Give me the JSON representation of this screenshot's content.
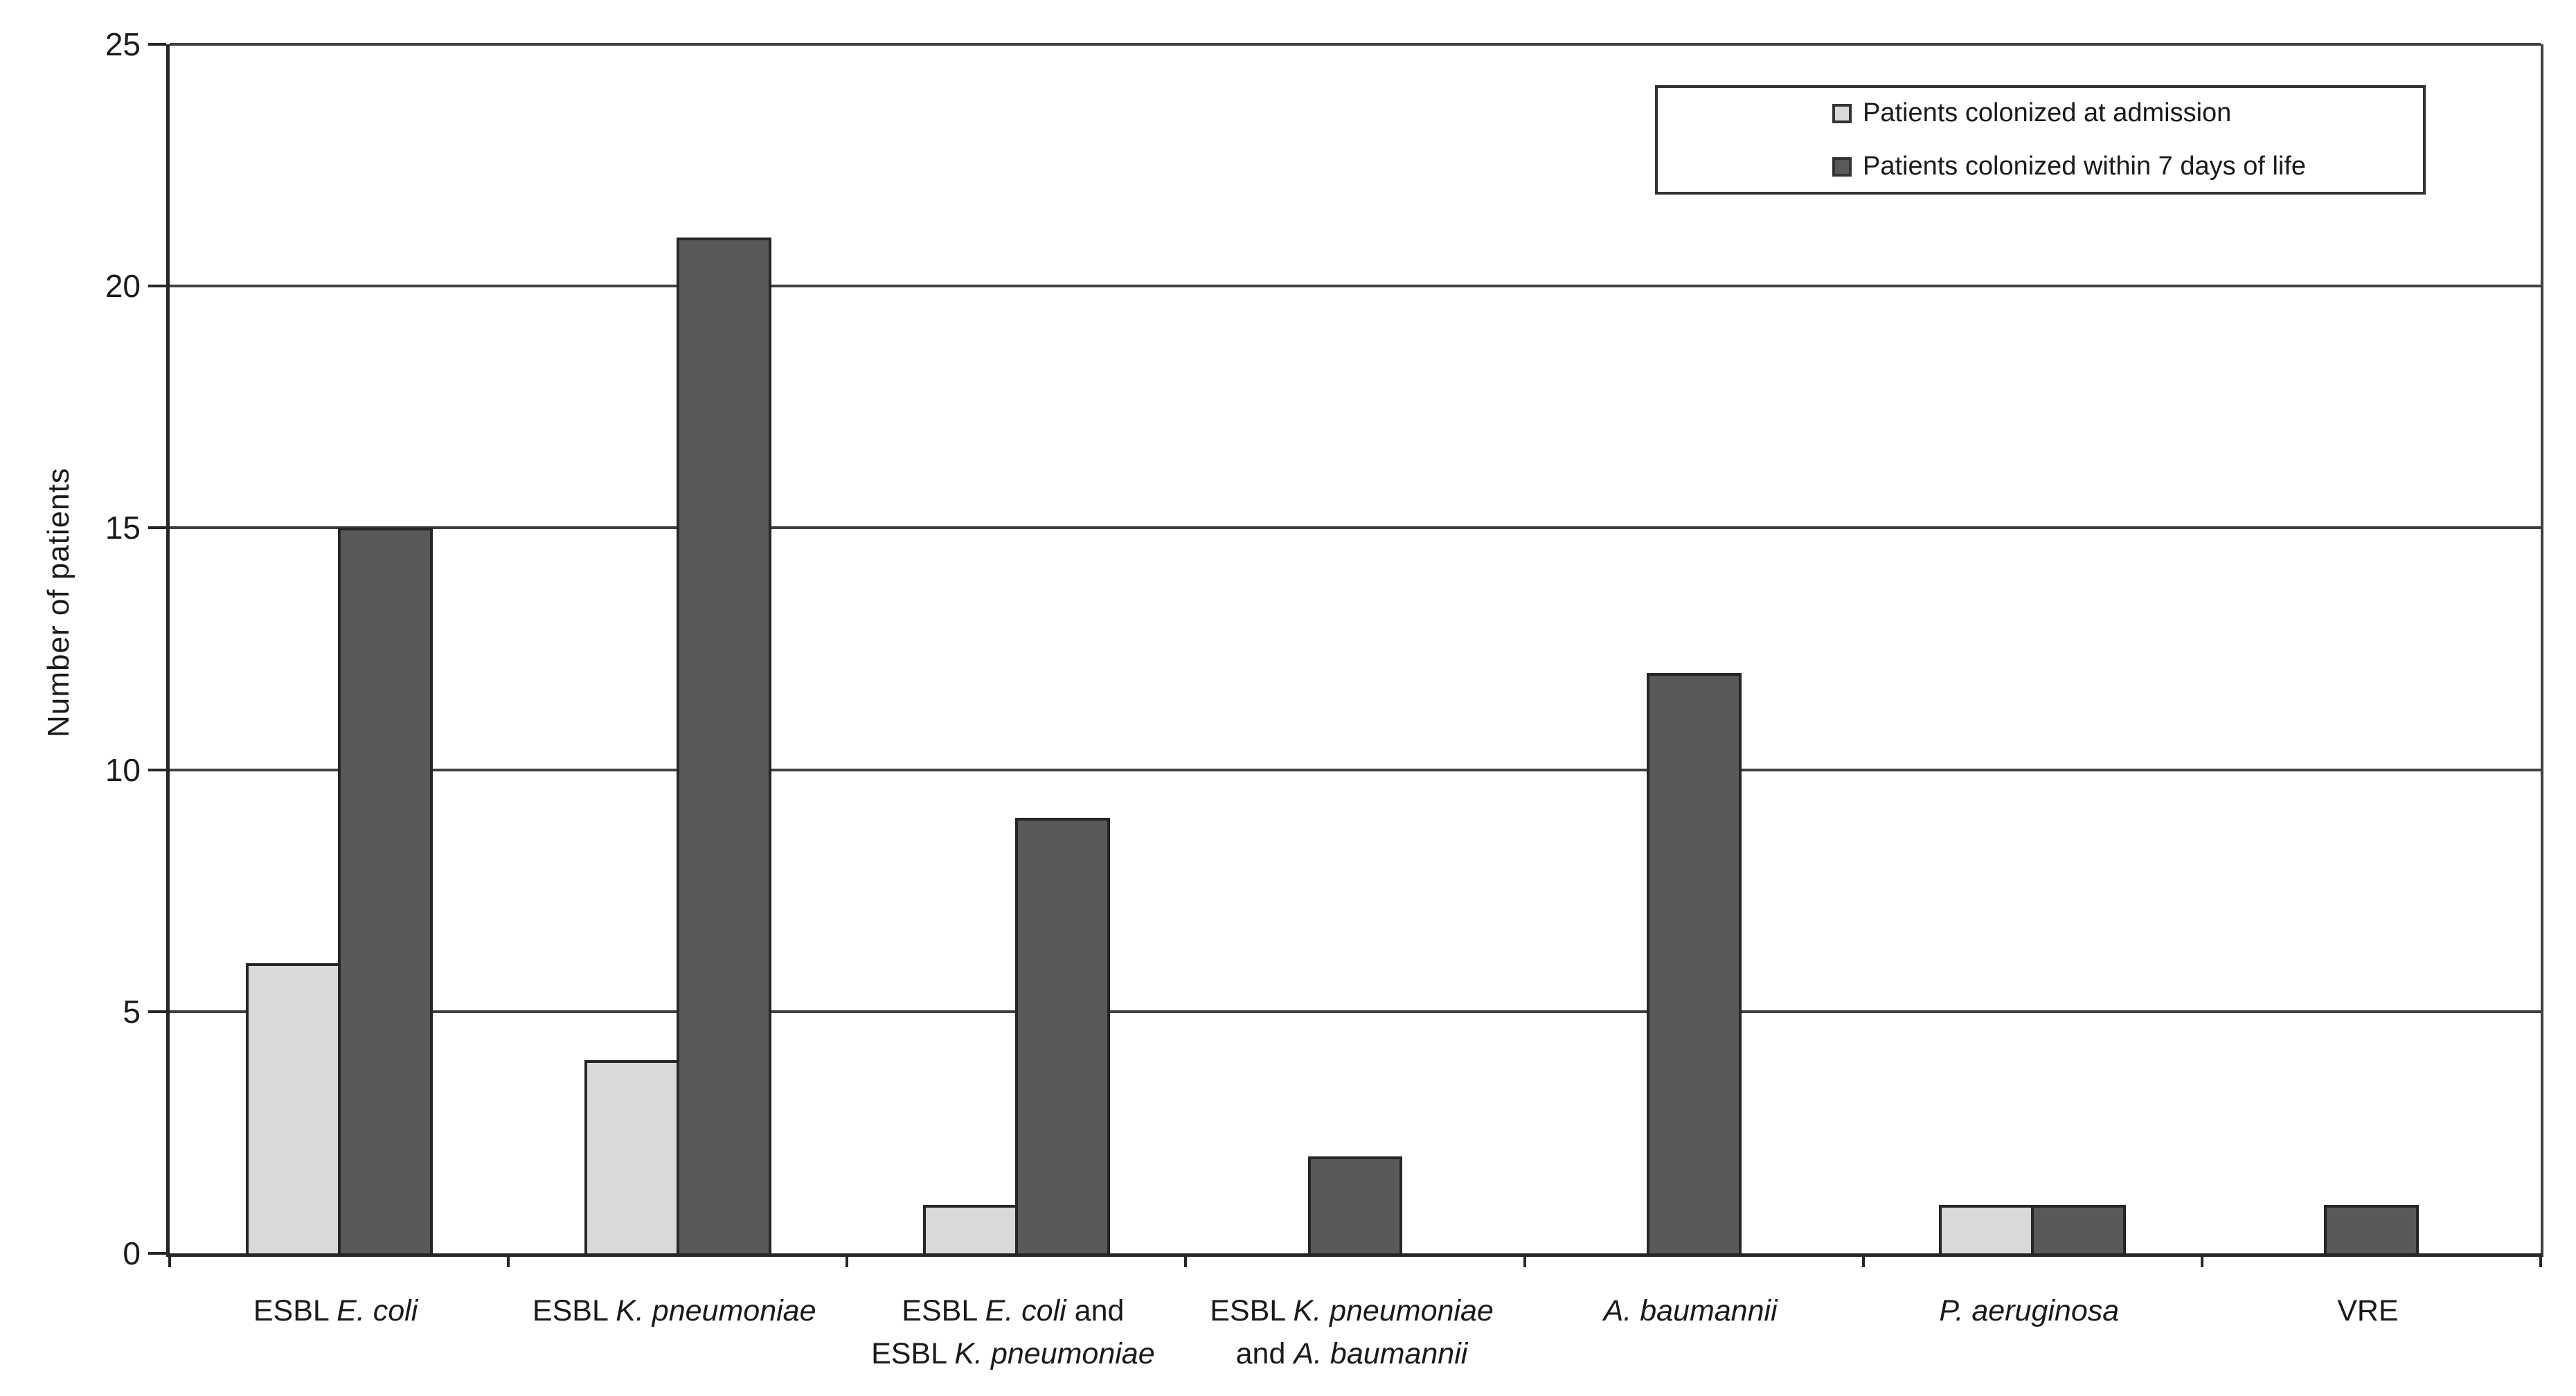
{
  "chart_data": {
    "type": "bar",
    "title": "",
    "xlabel": "",
    "ylabel": "Number of patients",
    "ylim": [
      0,
      25
    ],
    "yticks": [
      0,
      5,
      10,
      15,
      20,
      25
    ],
    "grid": true,
    "legend_position": "top-right",
    "background_color": "#ffffff",
    "axis_color": "#262626",
    "gridline_color": "#404040",
    "bar_outline_color": "#262626",
    "categories": [
      "ESBL E. coli",
      "ESBL K. pneumoniae",
      "ESBL E. coli and ESBL K. pneumoniae",
      "ESBL K. pneumoniae and A. baumannii",
      "A. baumannii",
      "P. aeruginosa",
      "VRE"
    ],
    "categories_rich": [
      [
        [
          {
            "t": "ESBL ",
            "i": false
          },
          {
            "t": "E. coli",
            "i": true
          }
        ]
      ],
      [
        [
          {
            "t": "ESBL ",
            "i": false
          },
          {
            "t": "K. pneumoniae",
            "i": true
          }
        ]
      ],
      [
        [
          {
            "t": "ESBL ",
            "i": false
          },
          {
            "t": "E. coli",
            "i": true
          },
          {
            "t": " and",
            "i": false
          }
        ],
        [
          {
            "t": "ESBL ",
            "i": false
          },
          {
            "t": "K. pneumoniae",
            "i": true
          }
        ]
      ],
      [
        [
          {
            "t": "ESBL ",
            "i": false
          },
          {
            "t": "K. pneumoniae",
            "i": true
          }
        ],
        [
          {
            "t": "and ",
            "i": false
          },
          {
            "t": "A. baumannii",
            "i": true
          }
        ]
      ],
      [
        [
          {
            "t": "A. baumannii",
            "i": true
          }
        ]
      ],
      [
        [
          {
            "t": "P. aeruginosa",
            "i": true
          }
        ]
      ],
      [
        [
          {
            "t": "VRE",
            "i": false
          }
        ]
      ]
    ],
    "series": [
      {
        "name": "Patients colonized at admission",
        "color": "#d9d9d9",
        "values": [
          6,
          4,
          1,
          0,
          0,
          1,
          0
        ]
      },
      {
        "name": "Patients colonized within 7 days of life",
        "color": "#595959",
        "values": [
          15,
          21,
          9,
          2,
          12,
          1,
          1
        ]
      }
    ]
  }
}
